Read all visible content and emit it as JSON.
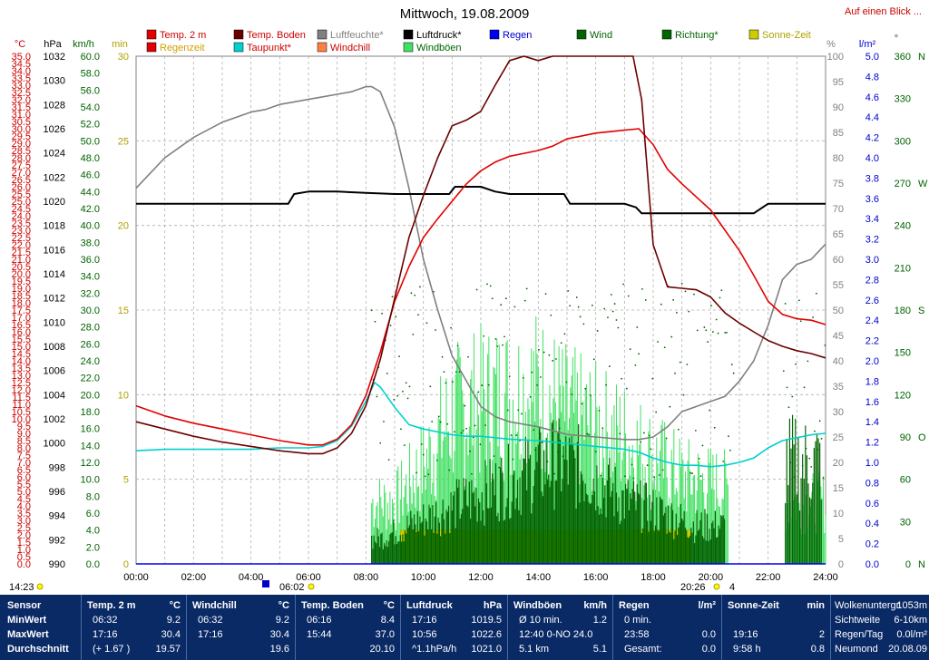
{
  "page_title": "Mittwoch, 19.08.2009",
  "top_link": "Auf einen Blick ...",
  "legend": [
    {
      "label": "Temp. 2 m",
      "color": "#e00000",
      "text_color": "#cc0000"
    },
    {
      "label": "Temp. Boden",
      "color": "#6b0000",
      "text_color": "#cc0000"
    },
    {
      "label": "Luftfeuchte*",
      "color": "#808080",
      "text_color": "#808080"
    },
    {
      "label": "Luftdruck*",
      "color": "#000000",
      "text_color": "#000000"
    },
    {
      "label": "Regen",
      "color": "#0000ee",
      "text_color": "#0000cc"
    },
    {
      "label": "Wind",
      "color": "#006400",
      "text_color": "#006400"
    },
    {
      "label": "Richtung*",
      "color": "#006400",
      "text_color": "#006400"
    },
    {
      "label": "Sonne-Zeit",
      "color": "#cccc00",
      "text_color": "#b0a000"
    },
    {
      "label": "Regenzeit",
      "color": "#e00000",
      "text_color": "#d0a000"
    },
    {
      "label": "Taupunkt*",
      "color": "#00d0d0",
      "text_color": "#cc0000"
    },
    {
      "label": "Windchill",
      "color": "#ff8040",
      "text_color": "#cc0000"
    },
    {
      "label": "Windböen",
      "color": "#40e060",
      "text_color": "#006400"
    }
  ],
  "axis_units": {
    "temp": "°C",
    "pressure": "hPa",
    "wind": "km/h",
    "minutes": "min",
    "percent": "%",
    "rain": "l/m²",
    "direction": "°"
  },
  "chart_data": {
    "type": "line",
    "title": "Mittwoch, 19.08.2009",
    "x_labels": [
      "00:00",
      "02:00",
      "04:00",
      "06:00",
      "08:00",
      "10:00",
      "12:00",
      "14:00",
      "16:00",
      "18:00",
      "20:00",
      "22:00",
      "24:00"
    ],
    "x_range": [
      0,
      24
    ],
    "grid": true,
    "axes": {
      "temp": {
        "range": [
          0,
          35
        ],
        "step": 0.5,
        "label_every": 1
      },
      "pressure": {
        "range": [
          990,
          1032
        ],
        "step": 2
      },
      "wind": {
        "range": [
          0,
          60
        ],
        "step": 2
      },
      "minutes": {
        "range": [
          0,
          30
        ],
        "step": 5
      },
      "percent": {
        "range": [
          0,
          100
        ],
        "step": 5
      },
      "rain": {
        "range": [
          0,
          5
        ],
        "step": 0.2
      },
      "direction": {
        "range": [
          0,
          360
        ],
        "step": 30,
        "labels": {
          "0": "N",
          "90": "O",
          "180": "S",
          "270": "W",
          "360": "N"
        }
      }
    },
    "series": [
      {
        "name": "Temp. 2 m",
        "axis": "temp",
        "color": "#e00000",
        "x": [
          0,
          1,
          2,
          3,
          4,
          5,
          6,
          6.5,
          7,
          7.5,
          8,
          8.5,
          9,
          9.5,
          10,
          10.5,
          11,
          11.5,
          12,
          12.5,
          13,
          14,
          14.5,
          15,
          16,
          17,
          17.5,
          18,
          18.5,
          19,
          19.5,
          20,
          20.5,
          21,
          21.5,
          22,
          22.5,
          23,
          23.5,
          24
        ],
        "y": [
          10.9,
          10.2,
          9.7,
          9.3,
          8.9,
          8.5,
          8.2,
          8.2,
          8.6,
          9.6,
          11.6,
          14.6,
          18.1,
          20.5,
          22.5,
          23.8,
          25.0,
          26.2,
          27.1,
          27.7,
          28.1,
          28.5,
          28.8,
          29.3,
          29.7,
          29.9,
          30.0,
          28.9,
          27.2,
          26.2,
          25.3,
          24.4,
          23.0,
          21.6,
          19.9,
          18.1,
          17.2,
          16.9,
          16.8,
          16.5
        ]
      },
      {
        "name": "Temp. Boden",
        "axis": "temp",
        "color": "#6b0000",
        "x": [
          0,
          1,
          2,
          3,
          4,
          5,
          6,
          6.5,
          7,
          7.5,
          8,
          8.5,
          9,
          9.5,
          10,
          10.5,
          11,
          11.5,
          12,
          12.5,
          13,
          13.5,
          14,
          14.5,
          15,
          15.5,
          16,
          16.5,
          17,
          17.3,
          17.6,
          18,
          18.5,
          19,
          19.5,
          20,
          20.5,
          21,
          21.5,
          22,
          22.5,
          23,
          23.5,
          24
        ],
        "y": [
          9.8,
          9.3,
          8.8,
          8.4,
          8.1,
          7.8,
          7.6,
          7.6,
          8.0,
          9.0,
          10.9,
          14.1,
          18.3,
          22.5,
          25.4,
          28.0,
          30.2,
          30.6,
          31.2,
          33.0,
          34.7,
          35.0,
          34.7,
          35.0,
          35.0,
          35.0,
          35.0,
          35.0,
          35.0,
          35.0,
          32.0,
          22.0,
          19.1,
          19.0,
          18.9,
          18.4,
          17.3,
          16.6,
          16.0,
          15.4,
          15.0,
          14.7,
          14.5,
          14.2
        ]
      },
      {
        "name": "Luftfeuchte*",
        "axis": "percent",
        "color": "#808080",
        "x": [
          0,
          0.5,
          1,
          1.5,
          2,
          2.5,
          3,
          3.5,
          4,
          4.5,
          5,
          5.5,
          6,
          6.5,
          7,
          7.5,
          8,
          8.2,
          8.5,
          9,
          9.5,
          10,
          10.5,
          11,
          11.5,
          12,
          12.5,
          13,
          14,
          15,
          16,
          17,
          17.5,
          18,
          18.5,
          19,
          19.5,
          20,
          20.5,
          21,
          21.5,
          22,
          22.5,
          23,
          23.5,
          24
        ],
        "y": [
          74,
          77,
          80,
          82,
          84,
          85.5,
          87,
          88,
          89,
          89.5,
          90.5,
          91,
          91.5,
          92,
          92.5,
          93,
          94,
          94,
          93,
          86,
          74,
          60,
          50,
          41,
          36,
          31,
          29,
          28,
          27,
          25.5,
          25,
          24.5,
          24.5,
          25,
          27,
          30,
          31,
          32,
          33,
          36,
          40,
          47,
          56,
          59,
          60,
          63
        ]
      },
      {
        "name": "Luftdruck*",
        "axis": "pressure",
        "color": "#000000",
        "x": [
          0,
          1,
          2,
          3,
          4,
          5.3,
          5.5,
          6,
          7,
          8,
          9,
          10,
          10.9,
          11.1,
          12,
          12.5,
          13,
          14,
          14.9,
          15.1,
          16,
          17,
          17.4,
          17.6,
          18,
          19,
          20,
          21,
          21.5,
          22,
          23,
          24
        ],
        "y": [
          1019.8,
          1019.8,
          1019.8,
          1019.8,
          1019.8,
          1019.8,
          1020.6,
          1020.8,
          1020.8,
          1020.7,
          1020.6,
          1020.6,
          1020.6,
          1021.2,
          1021.2,
          1020.8,
          1020.6,
          1020.6,
          1020.6,
          1019.8,
          1019.8,
          1019.8,
          1019.5,
          1019.0,
          1019.0,
          1019.0,
          1019.0,
          1019.0,
          1019.0,
          1019.8,
          1019.8,
          1019.8
        ]
      },
      {
        "name": "Taupunkt*",
        "axis": "temp",
        "color": "#00d0d0",
        "x": [
          0,
          1,
          2,
          3,
          4,
          5,
          6,
          6.5,
          7,
          7.5,
          8,
          8.3,
          8.5,
          9,
          9.5,
          10,
          10.5,
          11,
          11.5,
          12,
          13,
          14,
          15,
          16,
          17,
          17.5,
          18,
          18.5,
          19,
          19.5,
          20,
          20.5,
          21,
          21.5,
          22,
          22.5,
          23,
          23.5,
          24
        ],
        "y": [
          7.8,
          7.9,
          7.9,
          7.9,
          7.9,
          8.0,
          8.0,
          8.1,
          8.5,
          9.5,
          11.2,
          12.5,
          12.2,
          10.8,
          9.6,
          9.3,
          9.1,
          8.9,
          8.8,
          8.8,
          8.6,
          8.5,
          8.3,
          8.1,
          7.9,
          7.7,
          7.3,
          7.0,
          6.8,
          6.8,
          6.7,
          6.8,
          7.0,
          7.3,
          8.0,
          8.5,
          8.7,
          8.9,
          9.0
        ]
      },
      {
        "name": "Sonne-Zeit",
        "axis": "minutes",
        "color": "#cccc00",
        "type": "bar",
        "x": [
          9.2,
          19.3
        ],
        "y": [
          2,
          2
        ]
      },
      {
        "name": "Wind",
        "axis": "wind",
        "color": "#006400",
        "type": "bar",
        "x_range": [
          8.2,
          20.5
        ],
        "peak_values": [
          4,
          6,
          8,
          10,
          12,
          14,
          16,
          15,
          10,
          6
        ],
        "peak_x": [
          8.5,
          9.5,
          10.5,
          11.5,
          12.5,
          13.5,
          14.5,
          15.5,
          17,
          19.5
        ]
      },
      {
        "name": "Windböen",
        "axis": "wind",
        "color": "#40e060",
        "type": "bar",
        "x_range": [
          8.2,
          24
        ],
        "peak_values": [
          10,
          16,
          24,
          26,
          28,
          24,
          20,
          14,
          10
        ],
        "peak_x": [
          9,
          10,
          11,
          12,
          14,
          15,
          17,
          19,
          23
        ]
      },
      {
        "name": "Richtung*",
        "axis": "direction",
        "color": "#006400",
        "type": "scatter",
        "x_range": [
          8.2,
          24
        ],
        "y_range": [
          60,
          200
        ]
      }
    ]
  },
  "bottom_markers": {
    "sunrise_left": "14:23",
    "sunrise_time": "06:02",
    "sunset_time": "20:26",
    "sunset_count": "4"
  },
  "stats": {
    "rows": [
      "Sensor",
      "MinWert",
      "MaxWert",
      "Durchschnitt"
    ],
    "columns": [
      {
        "title": "Temp. 2 m",
        "unit": "°C",
        "cells": [
          [
            "06:32",
            "9.2"
          ],
          [
            "17:16",
            "30.4"
          ],
          [
            "(+ 1.67 )",
            "19.57"
          ]
        ]
      },
      {
        "title": "Windchill",
        "unit": "°C",
        "cells": [
          [
            "06:32",
            "9.2"
          ],
          [
            "17:16",
            "30.4"
          ],
          [
            "",
            "19.6"
          ]
        ]
      },
      {
        "title": "Temp. Boden",
        "unit": "°C",
        "cells": [
          [
            "06:16",
            "8.4"
          ],
          [
            "15:44",
            "37.0"
          ],
          [
            "",
            "20.10"
          ]
        ]
      },
      {
        "title": "Luftdruck",
        "unit": "hPa",
        "cells": [
          [
            "17:16",
            "1019.5"
          ],
          [
            "10:56",
            "1022.6"
          ],
          [
            "^1.1hPa/h",
            "1021.0"
          ]
        ]
      },
      {
        "title": "Windböen",
        "unit": "km/h",
        "cells": [
          [
            "Ø 10 min.",
            "1.2"
          ],
          [
            "12:40 0-NO 24.0",
            ""
          ],
          [
            "5.1 km",
            "5.1"
          ]
        ]
      },
      {
        "title": "Regen",
        "unit": "l/m²",
        "cells": [
          [
            "0 min.",
            ""
          ],
          [
            "23:58",
            "0.0"
          ],
          [
            "Gesamt:",
            "0.0"
          ]
        ]
      },
      {
        "title": "Sonne-Zeit",
        "unit": "min",
        "cells": [
          [
            "",
            ""
          ],
          [
            "19:16",
            "2"
          ],
          [
            "9:58 h",
            "0.8"
          ]
        ]
      }
    ],
    "extra": [
      {
        "label": "Wolkenuntergr.",
        "value": "1053m"
      },
      {
        "label": "Sichtweite",
        "value": "6-10km"
      },
      {
        "label": "Regen/Tag",
        "value": "0.0l/m²"
      },
      {
        "label": "Neumond",
        "value": "20.08.09"
      }
    ]
  }
}
